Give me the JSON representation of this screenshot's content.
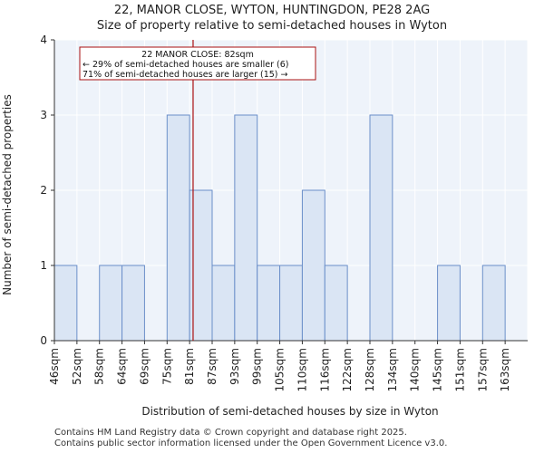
{
  "chart_data": {
    "type": "bar",
    "title": "22, MANOR CLOSE, WYTON, HUNTINGDON, PE28 2AG",
    "subtitle": "Size of property relative to semi-detached houses in Wyton",
    "xlabel": "Distribution of semi-detached houses by size in Wyton",
    "ylabel": "Number of semi-detached properties",
    "categories": [
      "46sqm",
      "52sqm",
      "58sqm",
      "64sqm",
      "69sqm",
      "75sqm",
      "81sqm",
      "87sqm",
      "93sqm",
      "99sqm",
      "105sqm",
      "110sqm",
      "116sqm",
      "122sqm",
      "128sqm",
      "134sqm",
      "140sqm",
      "145sqm",
      "151sqm",
      "157sqm",
      "163sqm"
    ],
    "values": [
      1,
      0,
      1,
      1,
      0,
      3,
      2,
      1,
      3,
      1,
      1,
      2,
      1,
      0,
      3,
      0,
      0,
      1,
      0,
      1,
      0
    ],
    "ylim": [
      0,
      4
    ],
    "yticks": [
      0,
      1,
      2,
      3,
      4
    ],
    "grid": true,
    "highlight_line_sqm": 82,
    "annotation": {
      "line1": "22 MANOR CLOSE: 82sqm",
      "line2": "← 29% of semi-detached houses are smaller (6)",
      "line3": "71% of semi-detached houses are larger (15) →"
    },
    "colors": {
      "bar_fill": "#dae5f4",
      "bar_edge": "#6b8fc9",
      "marker_line": "#aa1111",
      "plot_bg": "#eef3fa",
      "grid": "#ffffff"
    }
  },
  "footer": {
    "line1": "Contains HM Land Registry data © Crown copyright and database right 2025.",
    "line2": "Contains public sector information licensed under the Open Government Licence v3.0."
  }
}
